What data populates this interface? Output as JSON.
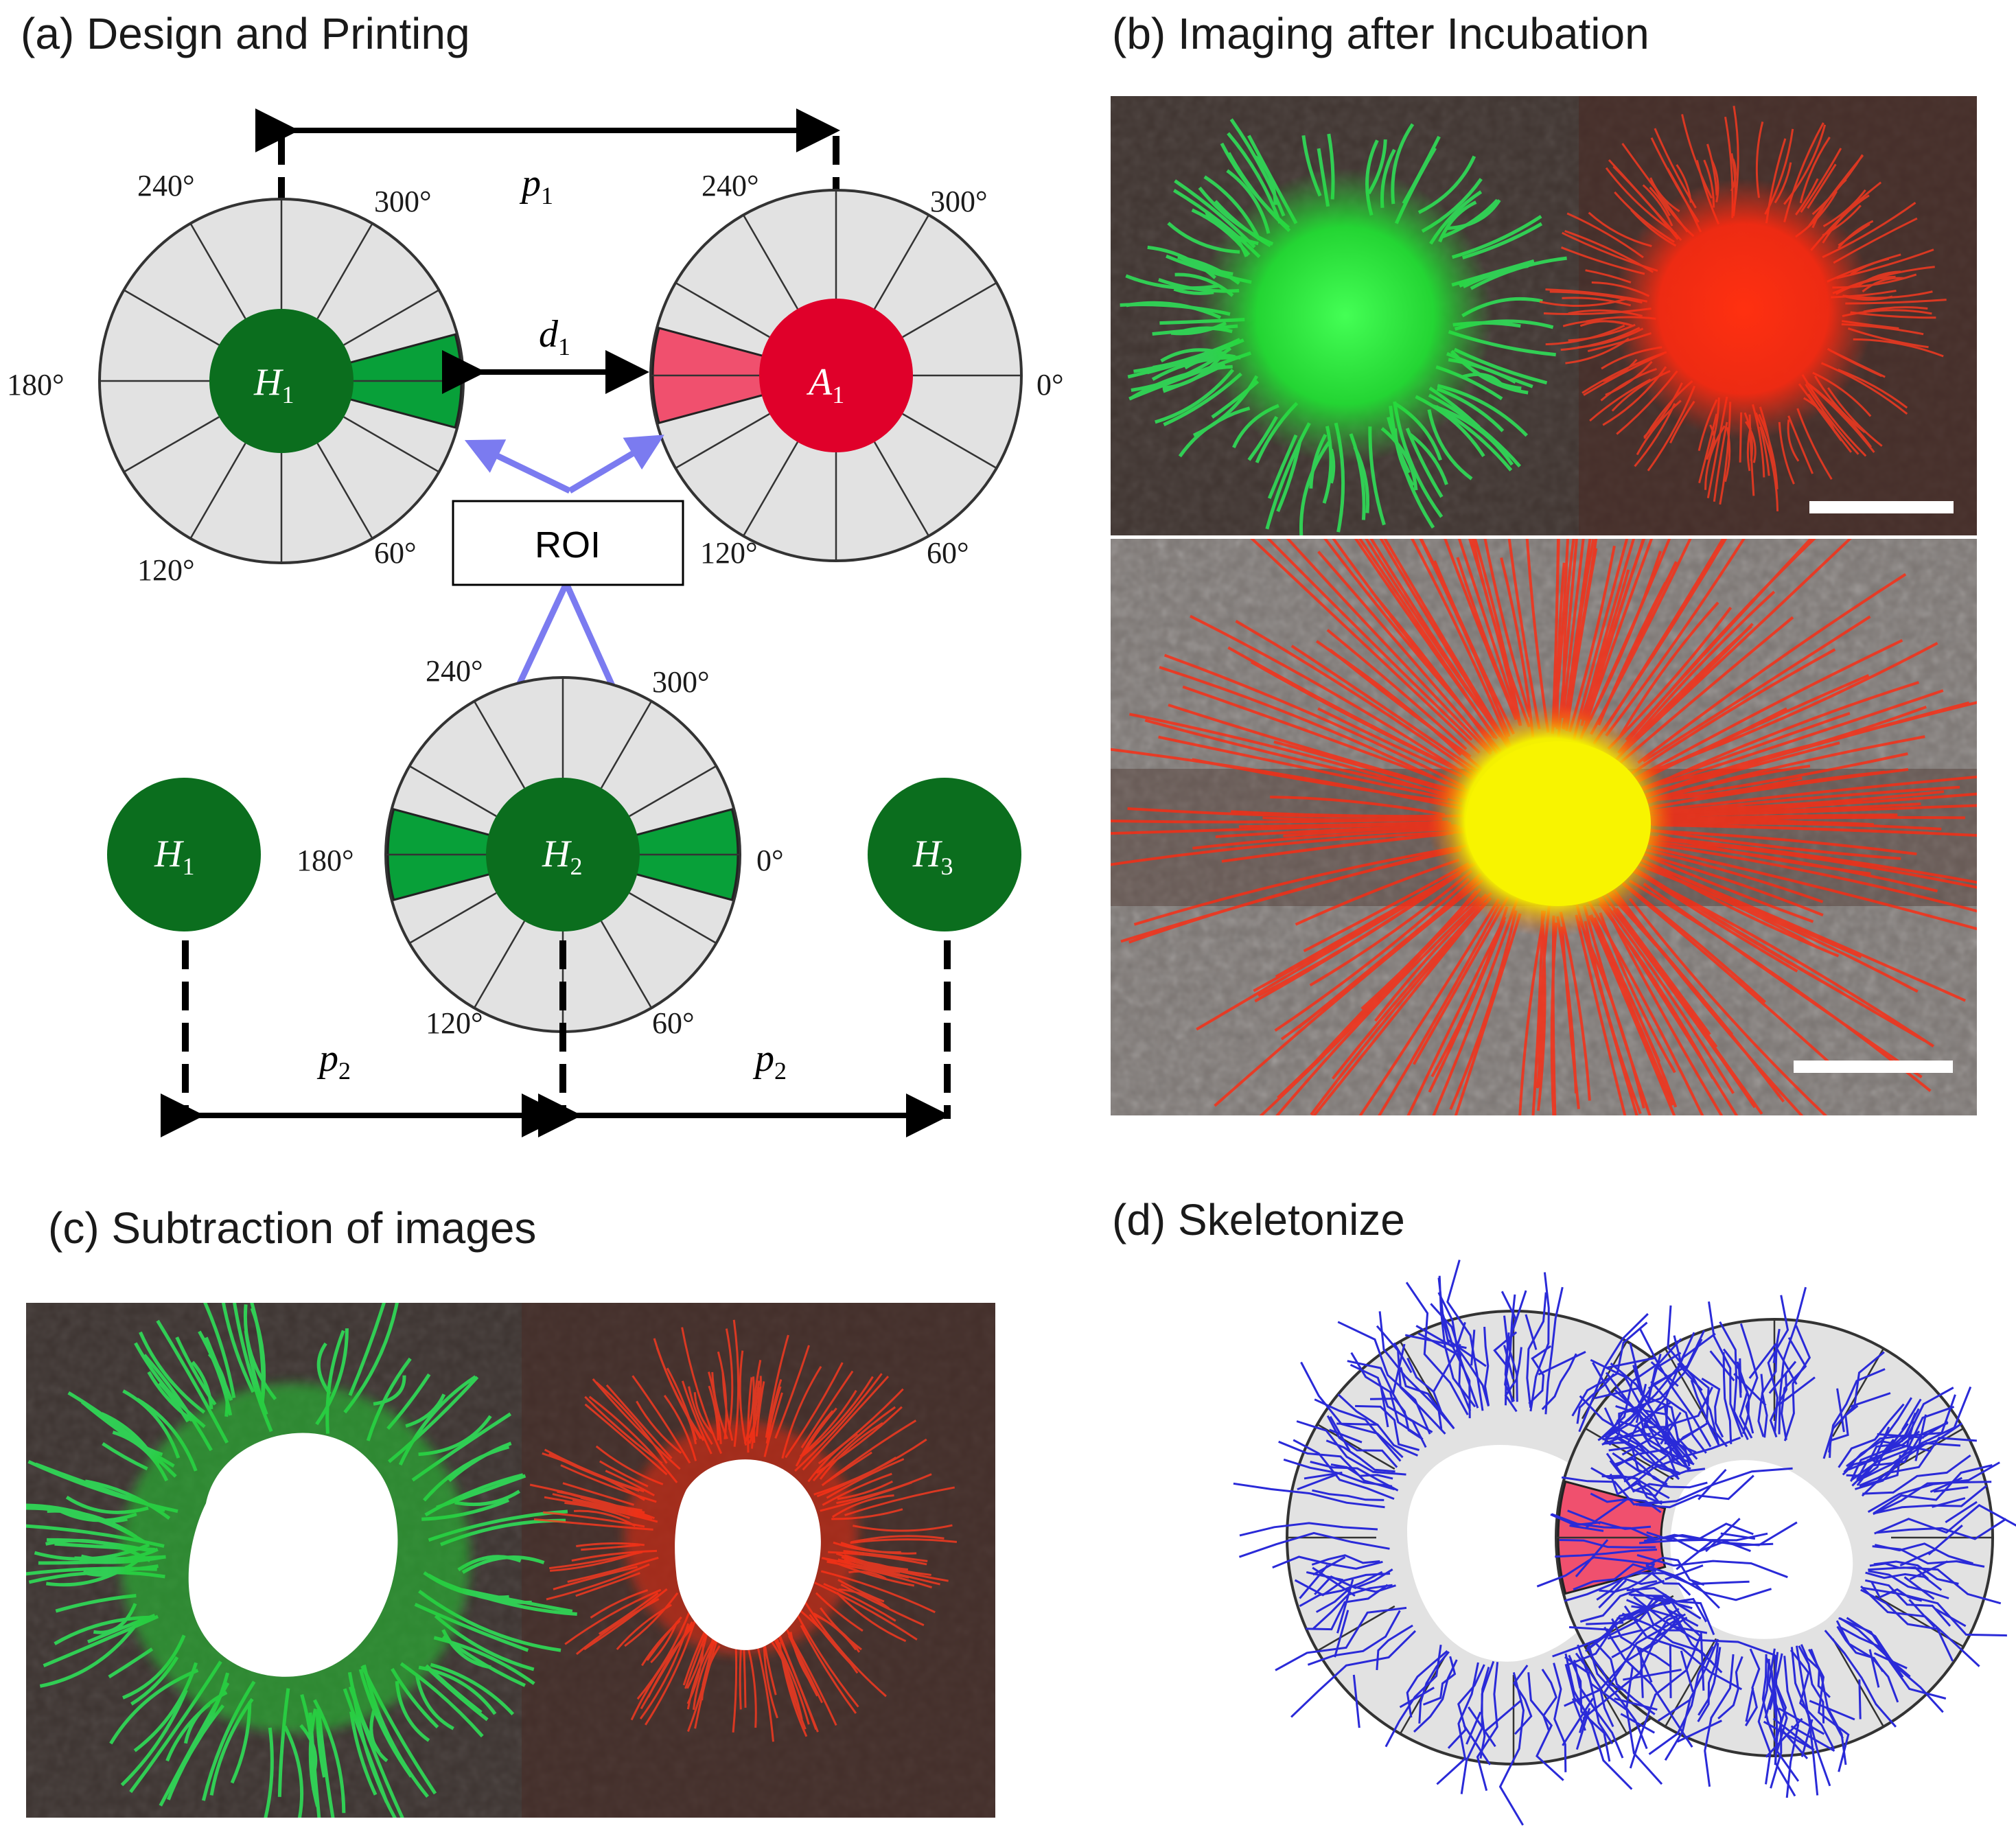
{
  "panels": {
    "a": {
      "title": "(a) Design and Printing"
    },
    "b": {
      "title": "(b) Imaging after Incubation"
    },
    "c": {
      "title": "(c) Subtraction of images"
    },
    "d": {
      "title": "(d) Skeletonize"
    }
  },
  "angle_labels": {
    "deg_0": "0°",
    "deg_60": "60°",
    "deg_120": "120°",
    "deg_180": "180°",
    "deg_240": "240°",
    "deg_300": "300°"
  },
  "variables": {
    "p": "p",
    "d": "d",
    "H": "H",
    "A": "A",
    "sub_1": "1",
    "sub_2": "2",
    "sub_3": "3"
  },
  "roi_label": "ROI",
  "colors": {
    "host_green": "#0b6e1e",
    "sector_green": "#08a039",
    "agent_red": "#e0002a",
    "sector_pink": "#f0506e",
    "ring_gray": "#e2e2e2",
    "roi_arrow": "#7b7bf0",
    "skeleton_blue": "#2a2ad8"
  }
}
